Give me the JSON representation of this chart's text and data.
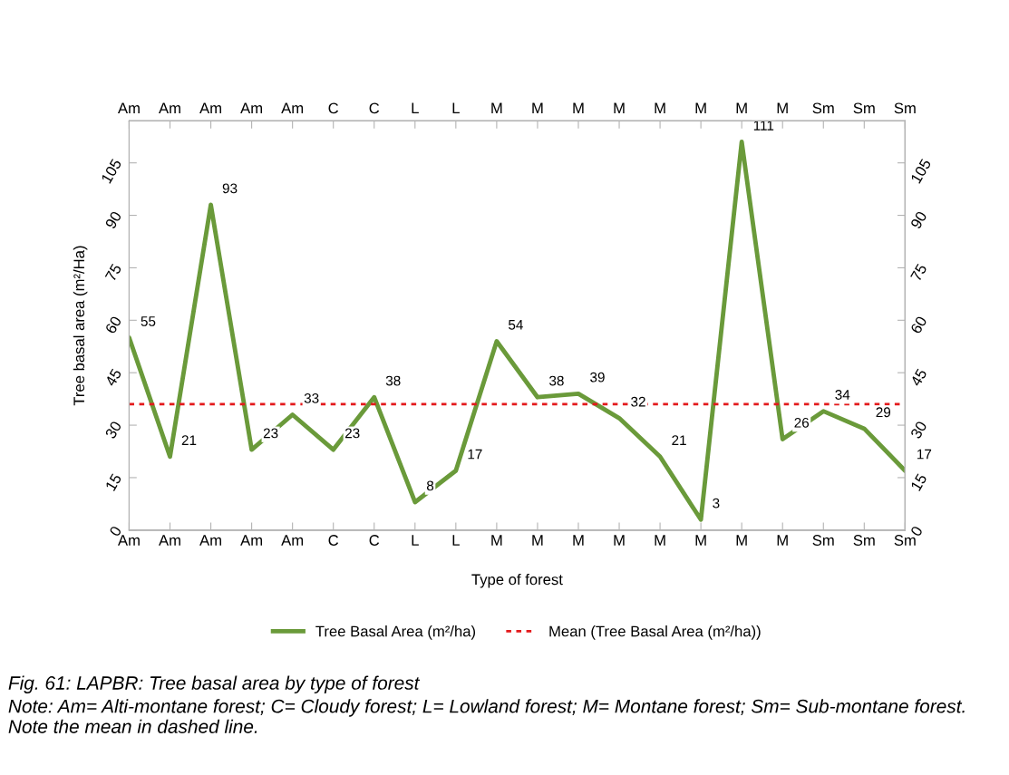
{
  "chart_data": {
    "type": "line",
    "title": "Fig. 61: LAPBR: Tree basal area by type of forest",
    "annotations": [
      "Note: Am= Alti-montane forest; C= Cloudy forest; L= Lowland forest; M= Montane forest; Sm= Sub-montane forest. Note the mean in dashed line."
    ],
    "xlabel": "Type of forest",
    "ylabel": "Tree basal area (m²/Ha)",
    "categories": [
      "Am",
      "Am",
      "Am",
      "Am",
      "Am",
      "C",
      "C",
      "L",
      "L",
      "M",
      "M",
      "M",
      "M",
      "M",
      "M",
      "M",
      "M",
      "Sm",
      "Sm",
      "Sm"
    ],
    "series": [
      {
        "name": "Tree Basal Area (m²/ha)",
        "color": "#6a9a3a",
        "values": [
          55,
          21,
          93,
          23,
          33,
          23,
          38,
          8,
          17,
          54,
          38,
          39,
          32,
          21,
          3,
          111,
          26,
          34,
          29,
          17
        ]
      }
    ],
    "ylim": [
      0,
      117
    ],
    "yticks": [
      0,
      15,
      30,
      45,
      60,
      75,
      90,
      105
    ],
    "y2lim": [
      0,
      117
    ],
    "y2ticks": [
      0,
      15,
      30,
      45,
      60,
      75,
      90,
      105
    ],
    "ref_lines": [
      {
        "axis": "y",
        "value": 36,
        "label": "Mean (Tree Basal Area (m²/ha))",
        "color": "#e31a1c",
        "line_style": "dotted"
      }
    ],
    "data_labels": true,
    "legend": "bottom",
    "grid": false,
    "marker": "none",
    "line_style": "solid"
  }
}
